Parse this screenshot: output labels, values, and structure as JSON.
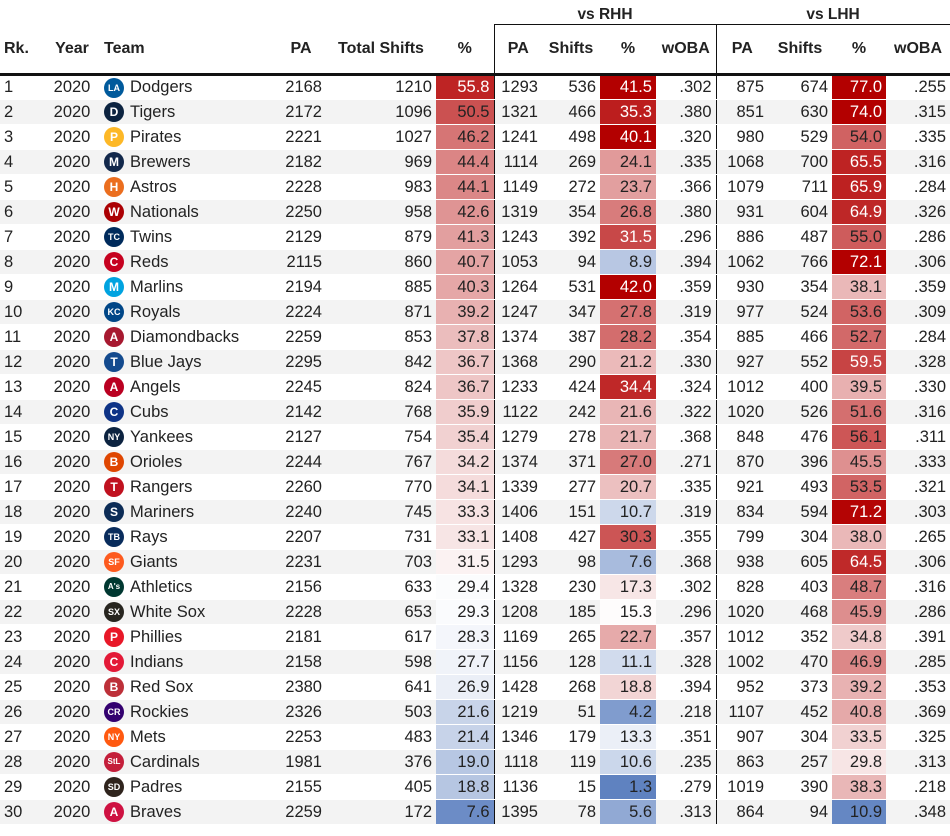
{
  "headers": {
    "group_rhh": "vs RHH",
    "group_lhh": "vs LHH",
    "rank": "Rk.",
    "year": "Year",
    "team": "Team",
    "pa": "PA",
    "total_shifts": "Total Shifts",
    "pct": "%",
    "rhh_pa": "PA",
    "rhh_shifts": "Shifts",
    "rhh_pct": "%",
    "rhh_woba": "wOBA",
    "lhh_pa": "PA",
    "lhh_shifts": "Shifts",
    "lhh_pct": "%",
    "lhh_woba": "wOBA"
  },
  "colors": {
    "high": "#b30000",
    "mid": "#ffffff",
    "low": "#5b7fbf",
    "text_dark": "#222222",
    "text_light": "#ffffff"
  },
  "chart_data": {
    "type": "table",
    "columns": [
      "Rk.",
      "Year",
      "Team",
      "PA",
      "Total Shifts",
      "%",
      "vs RHH PA",
      "vs RHH Shifts",
      "vs RHH %",
      "vs RHH wOBA",
      "vs LHH PA",
      "vs LHH Shifts",
      "vs LHH %",
      "vs LHH wOBA"
    ],
    "rows": [
      {
        "rk": "1",
        "year": "2020",
        "team": "Dodgers",
        "logo": "LA",
        "logo_color": "#005a9c",
        "pa": "2168",
        "shifts": "1210",
        "pct": "55.8",
        "rpa": "1293",
        "rshifts": "536",
        "rpct": "41.5",
        "rwoba": ".302",
        "lpa": "875",
        "lshifts": "674",
        "lpct": "77.0",
        "lwoba": ".255"
      },
      {
        "rk": "2",
        "year": "2020",
        "team": "Tigers",
        "logo": "D",
        "logo_color": "#0c2340",
        "pa": "2172",
        "shifts": "1096",
        "pct": "50.5",
        "rpa": "1321",
        "rshifts": "466",
        "rpct": "35.3",
        "rwoba": ".380",
        "lpa": "851",
        "lshifts": "630",
        "lpct": "74.0",
        "lwoba": ".315"
      },
      {
        "rk": "3",
        "year": "2020",
        "team": "Pirates",
        "logo": "P",
        "logo_color": "#fdb827",
        "pa": "2221",
        "shifts": "1027",
        "pct": "46.2",
        "rpa": "1241",
        "rshifts": "498",
        "rpct": "40.1",
        "rwoba": ".320",
        "lpa": "980",
        "lshifts": "529",
        "lpct": "54.0",
        "lwoba": ".335"
      },
      {
        "rk": "4",
        "year": "2020",
        "team": "Brewers",
        "logo": "M",
        "logo_color": "#12284b",
        "pa": "2182",
        "shifts": "969",
        "pct": "44.4",
        "rpa": "1114",
        "rshifts": "269",
        "rpct": "24.1",
        "rwoba": ".335",
        "lpa": "1068",
        "lshifts": "700",
        "lpct": "65.5",
        "lwoba": ".316"
      },
      {
        "rk": "5",
        "year": "2020",
        "team": "Astros",
        "logo": "H",
        "logo_color": "#eb6e1f",
        "pa": "2228",
        "shifts": "983",
        "pct": "44.1",
        "rpa": "1149",
        "rshifts": "272",
        "rpct": "23.7",
        "rwoba": ".366",
        "lpa": "1079",
        "lshifts": "711",
        "lpct": "65.9",
        "lwoba": ".284"
      },
      {
        "rk": "6",
        "year": "2020",
        "team": "Nationals",
        "logo": "W",
        "logo_color": "#ab0003",
        "pa": "2250",
        "shifts": "958",
        "pct": "42.6",
        "rpa": "1319",
        "rshifts": "354",
        "rpct": "26.8",
        "rwoba": ".380",
        "lpa": "931",
        "lshifts": "604",
        "lpct": "64.9",
        "lwoba": ".326"
      },
      {
        "rk": "7",
        "year": "2020",
        "team": "Twins",
        "logo": "TC",
        "logo_color": "#002b5c",
        "pa": "2129",
        "shifts": "879",
        "pct": "41.3",
        "rpa": "1243",
        "rshifts": "392",
        "rpct": "31.5",
        "rwoba": ".296",
        "lpa": "886",
        "lshifts": "487",
        "lpct": "55.0",
        "lwoba": ".286"
      },
      {
        "rk": "8",
        "year": "2020",
        "team": "Reds",
        "logo": "C",
        "logo_color": "#c6011f",
        "pa": "2115",
        "shifts": "860",
        "pct": "40.7",
        "rpa": "1053",
        "rshifts": "94",
        "rpct": "8.9",
        "rwoba": ".394",
        "lpa": "1062",
        "lshifts": "766",
        "lpct": "72.1",
        "lwoba": ".306"
      },
      {
        "rk": "9",
        "year": "2020",
        "team": "Marlins",
        "logo": "M",
        "logo_color": "#00a3e0",
        "pa": "2194",
        "shifts": "885",
        "pct": "40.3",
        "rpa": "1264",
        "rshifts": "531",
        "rpct": "42.0",
        "rwoba": ".359",
        "lpa": "930",
        "lshifts": "354",
        "lpct": "38.1",
        "lwoba": ".359"
      },
      {
        "rk": "10",
        "year": "2020",
        "team": "Royals",
        "logo": "KC",
        "logo_color": "#004687",
        "pa": "2224",
        "shifts": "871",
        "pct": "39.2",
        "rpa": "1247",
        "rshifts": "347",
        "rpct": "27.8",
        "rwoba": ".319",
        "lpa": "977",
        "lshifts": "524",
        "lpct": "53.6",
        "lwoba": ".309"
      },
      {
        "rk": "11",
        "year": "2020",
        "team": "Diamondbacks",
        "logo": "A",
        "logo_color": "#a71930",
        "pa": "2259",
        "shifts": "853",
        "pct": "37.8",
        "rpa": "1374",
        "rshifts": "387",
        "rpct": "28.2",
        "rwoba": ".354",
        "lpa": "885",
        "lshifts": "466",
        "lpct": "52.7",
        "lwoba": ".284"
      },
      {
        "rk": "12",
        "year": "2020",
        "team": "Blue Jays",
        "logo": "T",
        "logo_color": "#134a8e",
        "pa": "2295",
        "shifts": "842",
        "pct": "36.7",
        "rpa": "1368",
        "rshifts": "290",
        "rpct": "21.2",
        "rwoba": ".330",
        "lpa": "927",
        "lshifts": "552",
        "lpct": "59.5",
        "lwoba": ".328"
      },
      {
        "rk": "13",
        "year": "2020",
        "team": "Angels",
        "logo": "A",
        "logo_color": "#ba0021",
        "pa": "2245",
        "shifts": "824",
        "pct": "36.7",
        "rpa": "1233",
        "rshifts": "424",
        "rpct": "34.4",
        "rwoba": ".324",
        "lpa": "1012",
        "lshifts": "400",
        "lpct": "39.5",
        "lwoba": ".330"
      },
      {
        "rk": "14",
        "year": "2020",
        "team": "Cubs",
        "logo": "C",
        "logo_color": "#0e3386",
        "pa": "2142",
        "shifts": "768",
        "pct": "35.9",
        "rpa": "1122",
        "rshifts": "242",
        "rpct": "21.6",
        "rwoba": ".322",
        "lpa": "1020",
        "lshifts": "526",
        "lpct": "51.6",
        "lwoba": ".316"
      },
      {
        "rk": "15",
        "year": "2020",
        "team": "Yankees",
        "logo": "NY",
        "logo_color": "#0c2340",
        "pa": "2127",
        "shifts": "754",
        "pct": "35.4",
        "rpa": "1279",
        "rshifts": "278",
        "rpct": "21.7",
        "rwoba": ".368",
        "lpa": "848",
        "lshifts": "476",
        "lpct": "56.1",
        "lwoba": ".311"
      },
      {
        "rk": "16",
        "year": "2020",
        "team": "Orioles",
        "logo": "B",
        "logo_color": "#df4601",
        "pa": "2244",
        "shifts": "767",
        "pct": "34.2",
        "rpa": "1374",
        "rshifts": "371",
        "rpct": "27.0",
        "rwoba": ".271",
        "lpa": "870",
        "lshifts": "396",
        "lpct": "45.5",
        "lwoba": ".333"
      },
      {
        "rk": "17",
        "year": "2020",
        "team": "Rangers",
        "logo": "T",
        "logo_color": "#c0111f",
        "pa": "2260",
        "shifts": "770",
        "pct": "34.1",
        "rpa": "1339",
        "rshifts": "277",
        "rpct": "20.7",
        "rwoba": ".335",
        "lpa": "921",
        "lshifts": "493",
        "lpct": "53.5",
        "lwoba": ".321"
      },
      {
        "rk": "18",
        "year": "2020",
        "team": "Mariners",
        "logo": "S",
        "logo_color": "#0c2c56",
        "pa": "2240",
        "shifts": "745",
        "pct": "33.3",
        "rpa": "1406",
        "rshifts": "151",
        "rpct": "10.7",
        "rwoba": ".319",
        "lpa": "834",
        "lshifts": "594",
        "lpct": "71.2",
        "lwoba": ".303"
      },
      {
        "rk": "19",
        "year": "2020",
        "team": "Rays",
        "logo": "TB",
        "logo_color": "#092c5c",
        "pa": "2207",
        "shifts": "731",
        "pct": "33.1",
        "rpa": "1408",
        "rshifts": "427",
        "rpct": "30.3",
        "rwoba": ".355",
        "lpa": "799",
        "lshifts": "304",
        "lpct": "38.0",
        "lwoba": ".265"
      },
      {
        "rk": "20",
        "year": "2020",
        "team": "Giants",
        "logo": "SF",
        "logo_color": "#fd5a1e",
        "pa": "2231",
        "shifts": "703",
        "pct": "31.5",
        "rpa": "1293",
        "rshifts": "98",
        "rpct": "7.6",
        "rwoba": ".368",
        "lpa": "938",
        "lshifts": "605",
        "lpct": "64.5",
        "lwoba": ".306"
      },
      {
        "rk": "21",
        "year": "2020",
        "team": "Athletics",
        "logo": "A's",
        "logo_color": "#003831",
        "pa": "2156",
        "shifts": "633",
        "pct": "29.4",
        "rpa": "1328",
        "rshifts": "230",
        "rpct": "17.3",
        "rwoba": ".302",
        "lpa": "828",
        "lshifts": "403",
        "lpct": "48.7",
        "lwoba": ".316"
      },
      {
        "rk": "22",
        "year": "2020",
        "team": "White Sox",
        "logo": "SX",
        "logo_color": "#27251f",
        "pa": "2228",
        "shifts": "653",
        "pct": "29.3",
        "rpa": "1208",
        "rshifts": "185",
        "rpct": "15.3",
        "rwoba": ".296",
        "lpa": "1020",
        "lshifts": "468",
        "lpct": "45.9",
        "lwoba": ".286"
      },
      {
        "rk": "23",
        "year": "2020",
        "team": "Phillies",
        "logo": "P",
        "logo_color": "#e81828",
        "pa": "2181",
        "shifts": "617",
        "pct": "28.3",
        "rpa": "1169",
        "rshifts": "265",
        "rpct": "22.7",
        "rwoba": ".357",
        "lpa": "1012",
        "lshifts": "352",
        "lpct": "34.8",
        "lwoba": ".391"
      },
      {
        "rk": "24",
        "year": "2020",
        "team": "Indians",
        "logo": "C",
        "logo_color": "#e31937",
        "pa": "2158",
        "shifts": "598",
        "pct": "27.7",
        "rpa": "1156",
        "rshifts": "128",
        "rpct": "11.1",
        "rwoba": ".328",
        "lpa": "1002",
        "lshifts": "470",
        "lpct": "46.9",
        "lwoba": ".285"
      },
      {
        "rk": "25",
        "year": "2020",
        "team": "Red Sox",
        "logo": "B",
        "logo_color": "#bd3039",
        "pa": "2380",
        "shifts": "641",
        "pct": "26.9",
        "rpa": "1428",
        "rshifts": "268",
        "rpct": "18.8",
        "rwoba": ".394",
        "lpa": "952",
        "lshifts": "373",
        "lpct": "39.2",
        "lwoba": ".353"
      },
      {
        "rk": "26",
        "year": "2020",
        "team": "Rockies",
        "logo": "CR",
        "logo_color": "#33006f",
        "pa": "2326",
        "shifts": "503",
        "pct": "21.6",
        "rpa": "1219",
        "rshifts": "51",
        "rpct": "4.2",
        "rwoba": ".218",
        "lpa": "1107",
        "lshifts": "452",
        "lpct": "40.8",
        "lwoba": ".369"
      },
      {
        "rk": "27",
        "year": "2020",
        "team": "Mets",
        "logo": "NY",
        "logo_color": "#ff5910",
        "pa": "2253",
        "shifts": "483",
        "pct": "21.4",
        "rpa": "1346",
        "rshifts": "179",
        "rpct": "13.3",
        "rwoba": ".351",
        "lpa": "907",
        "lshifts": "304",
        "lpct": "33.5",
        "lwoba": ".325"
      },
      {
        "rk": "28",
        "year": "2020",
        "team": "Cardinals",
        "logo": "StL",
        "logo_color": "#c41e3a",
        "pa": "1981",
        "shifts": "376",
        "pct": "19.0",
        "rpa": "1118",
        "rshifts": "119",
        "rpct": "10.6",
        "rwoba": ".235",
        "lpa": "863",
        "lshifts": "257",
        "lpct": "29.8",
        "lwoba": ".313"
      },
      {
        "rk": "29",
        "year": "2020",
        "team": "Padres",
        "logo": "SD",
        "logo_color": "#2f241d",
        "pa": "2155",
        "shifts": "405",
        "pct": "18.8",
        "rpa": "1136",
        "rshifts": "15",
        "rpct": "1.3",
        "rwoba": ".279",
        "lpa": "1019",
        "lshifts": "390",
        "lpct": "38.3",
        "lwoba": ".218"
      },
      {
        "rk": "30",
        "year": "2020",
        "team": "Braves",
        "logo": "A",
        "logo_color": "#ce1141",
        "pa": "2259",
        "shifts": "172",
        "pct": "7.6",
        "rpa": "1395",
        "rshifts": "78",
        "rpct": "5.6",
        "rwoba": ".313",
        "lpa": "864",
        "lshifts": "94",
        "lpct": "10.9",
        "lwoba": ".348"
      }
    ]
  }
}
